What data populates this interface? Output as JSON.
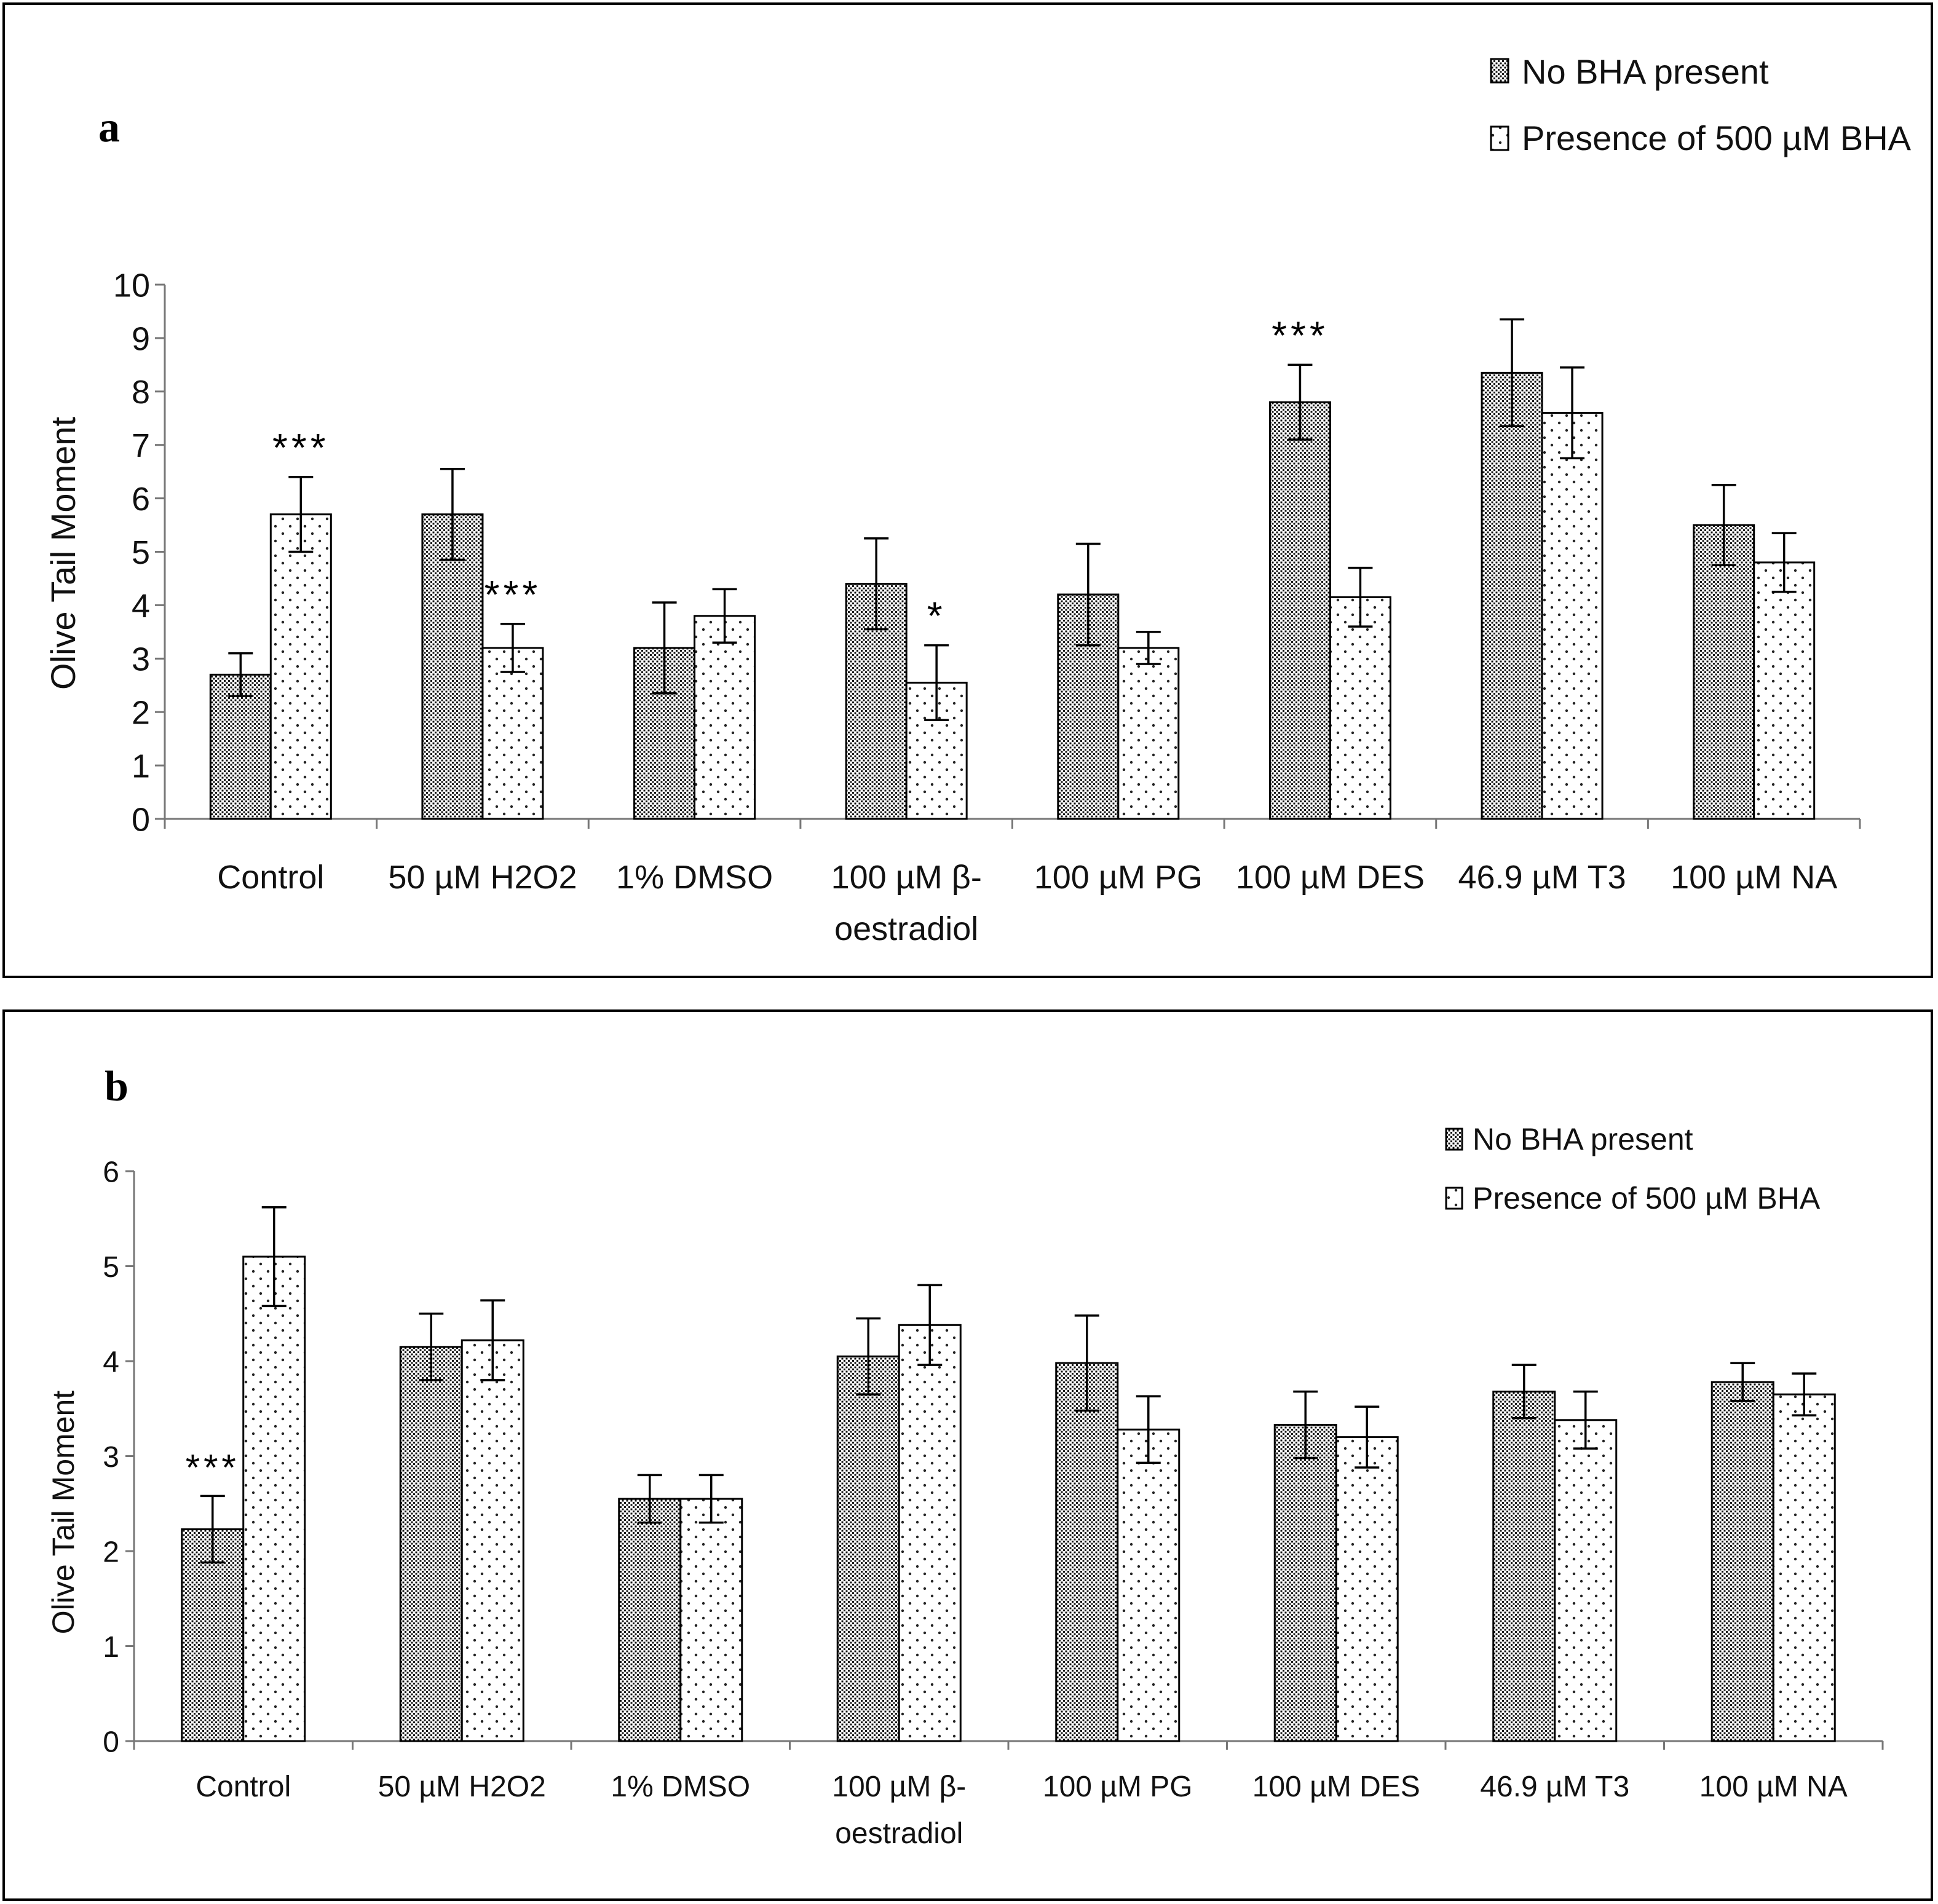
{
  "legend": {
    "no_bha": "No BHA present",
    "bha": "Presence of  500 µM BHA"
  },
  "chart_data": [
    {
      "type": "bar",
      "panel_label": "a",
      "ylabel": "Olive Tail Moment",
      "ylim": [
        0,
        10
      ],
      "yticks": [
        "0",
        "1",
        "2",
        "3",
        "4",
        "5",
        "6",
        "7",
        "8",
        "9",
        "10"
      ],
      "categories": [
        [
          "Control"
        ],
        [
          "50 µM H2O2"
        ],
        [
          "1% DMSO"
        ],
        [
          "100 µM β-",
          "oestradiol"
        ],
        [
          "100 µM PG"
        ],
        [
          "100 µM DES"
        ],
        [
          "46.9 µM T3"
        ],
        [
          "100 µM NA"
        ]
      ],
      "series": [
        {
          "name": "No BHA present",
          "values": [
            2.7,
            5.7,
            3.2,
            4.4,
            4.2,
            7.8,
            8.35,
            5.5
          ],
          "errors": [
            0.4,
            0.85,
            0.85,
            0.85,
            0.95,
            0.7,
            1.0,
            0.75
          ]
        },
        {
          "name": "Presence of  500 µM BHA",
          "values": [
            5.7,
            3.2,
            3.8,
            2.55,
            3.2,
            4.15,
            7.6,
            4.8
          ],
          "errors": [
            0.7,
            0.45,
            0.5,
            0.7,
            0.3,
            0.55,
            0.85,
            0.55
          ]
        }
      ],
      "annotations": [
        {
          "category": 0,
          "series": 1,
          "text": "***"
        },
        {
          "category": 1,
          "series": 1,
          "text": "***"
        },
        {
          "category": 3,
          "series": 1,
          "text": "*"
        },
        {
          "category": 5,
          "series": 0,
          "text": "***"
        }
      ]
    },
    {
      "type": "bar",
      "panel_label": "b",
      "ylabel": "Olive Tail Moment",
      "ylim": [
        0,
        6
      ],
      "yticks": [
        "0",
        "1",
        "2",
        "3",
        "4",
        "5",
        "6"
      ],
      "categories": [
        [
          "Control"
        ],
        [
          "50 µM H2O2"
        ],
        [
          "1% DMSO"
        ],
        [
          "100 µM β-",
          "oestradiol"
        ],
        [
          "100 µM PG"
        ],
        [
          "100 µM DES"
        ],
        [
          "46.9 µM T3"
        ],
        [
          "100 µM NA"
        ]
      ],
      "series": [
        {
          "name": "No BHA present",
          "values": [
            2.23,
            4.15,
            2.55,
            4.05,
            3.98,
            3.33,
            3.68,
            3.78
          ],
          "errors": [
            0.35,
            0.35,
            0.25,
            0.4,
            0.5,
            0.35,
            0.28,
            0.2
          ]
        },
        {
          "name": "Presence of  500 µM BHA",
          "values": [
            5.1,
            4.22,
            2.55,
            4.38,
            3.28,
            3.2,
            3.38,
            3.65
          ],
          "errors": [
            0.52,
            0.42,
            0.25,
            0.42,
            0.35,
            0.32,
            0.3,
            0.22
          ]
        }
      ],
      "annotations": [
        {
          "category": 0,
          "series": 0,
          "text": "***"
        }
      ]
    }
  ]
}
